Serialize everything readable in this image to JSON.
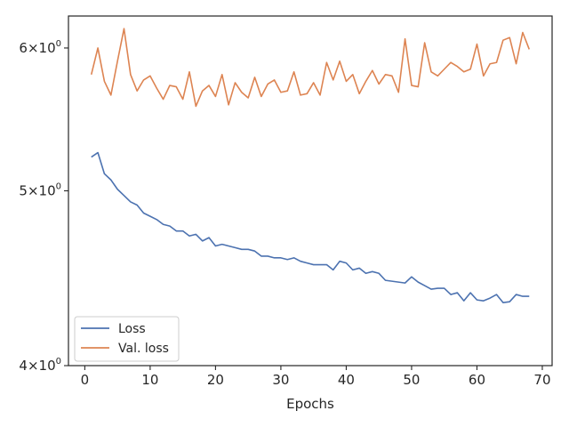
{
  "chart_data": {
    "type": "line",
    "xlabel": "Epochs",
    "ylabel": "",
    "xlim": [
      -2.5,
      71.5
    ],
    "ylim": [
      4.0,
      6.25
    ],
    "yscale": "log",
    "grid": false,
    "legend_position": "bottom-left",
    "x_ticks": [
      0,
      10,
      20,
      30,
      40,
      50,
      60,
      70
    ],
    "x_tick_labels": [
      "0",
      "10",
      "20",
      "30",
      "40",
      "50",
      "60",
      "70"
    ],
    "y_ticks": [
      4,
      5,
      6
    ],
    "y_tick_bases": [
      "4",
      "5",
      "6"
    ],
    "y_tick_suffix": "×10",
    "y_tick_exp": "0",
    "series": [
      {
        "name": "Loss",
        "color": "#4c72b0",
        "x": [
          1,
          2,
          3,
          4,
          5,
          6,
          7,
          8,
          9,
          10,
          11,
          12,
          13,
          14,
          15,
          16,
          17,
          18,
          19,
          20,
          21,
          22,
          23,
          24,
          25,
          26,
          27,
          28,
          29,
          30,
          31,
          32,
          33,
          34,
          35,
          36,
          37,
          38,
          39,
          40,
          41,
          42,
          43,
          44,
          45,
          46,
          47,
          48,
          49,
          50,
          51,
          52,
          53,
          54,
          55,
          56,
          57,
          58,
          59,
          60,
          61,
          62,
          63,
          64,
          65,
          66,
          67,
          68
        ],
        "values": [
          5.22,
          5.25,
          5.11,
          5.07,
          5.01,
          4.97,
          4.93,
          4.91,
          4.86,
          4.84,
          4.82,
          4.79,
          4.78,
          4.75,
          4.75,
          4.72,
          4.73,
          4.69,
          4.71,
          4.66,
          4.67,
          4.66,
          4.65,
          4.64,
          4.64,
          4.63,
          4.6,
          4.6,
          4.59,
          4.59,
          4.58,
          4.59,
          4.57,
          4.56,
          4.55,
          4.55,
          4.55,
          4.52,
          4.57,
          4.56,
          4.52,
          4.53,
          4.5,
          4.51,
          4.5,
          4.46,
          4.455,
          4.45,
          4.445,
          4.48,
          4.45,
          4.43,
          4.41,
          4.415,
          4.415,
          4.38,
          4.39,
          4.345,
          4.39,
          4.35,
          4.345,
          4.36,
          4.38,
          4.335,
          4.34,
          4.38,
          4.37,
          4.37
        ]
      },
      {
        "name": "Val. loss",
        "color": "#dd8452",
        "x": [
          1,
          2,
          3,
          4,
          5,
          6,
          7,
          8,
          9,
          10,
          11,
          12,
          13,
          14,
          15,
          16,
          17,
          18,
          19,
          20,
          21,
          22,
          23,
          24,
          25,
          26,
          27,
          28,
          29,
          30,
          31,
          32,
          33,
          34,
          35,
          36,
          37,
          38,
          39,
          40,
          41,
          42,
          43,
          44,
          45,
          46,
          47,
          48,
          49,
          50,
          51,
          52,
          53,
          54,
          55,
          56,
          57,
          58,
          59,
          60,
          61,
          62,
          63,
          64,
          65,
          66,
          67,
          68
        ],
        "values": [
          5.8,
          6.0,
          5.75,
          5.65,
          5.9,
          6.15,
          5.8,
          5.68,
          5.76,
          5.79,
          5.7,
          5.62,
          5.72,
          5.71,
          5.62,
          5.82,
          5.57,
          5.68,
          5.72,
          5.64,
          5.8,
          5.58,
          5.74,
          5.67,
          5.63,
          5.78,
          5.64,
          5.73,
          5.76,
          5.67,
          5.68,
          5.82,
          5.65,
          5.66,
          5.74,
          5.65,
          5.89,
          5.76,
          5.9,
          5.75,
          5.8,
          5.66,
          5.75,
          5.83,
          5.73,
          5.8,
          5.79,
          5.67,
          6.07,
          5.72,
          5.71,
          6.04,
          5.82,
          5.79,
          5.84,
          5.89,
          5.86,
          5.82,
          5.84,
          6.03,
          5.79,
          5.88,
          5.89,
          6.06,
          6.08,
          5.88,
          6.12,
          5.99
        ]
      }
    ]
  }
}
